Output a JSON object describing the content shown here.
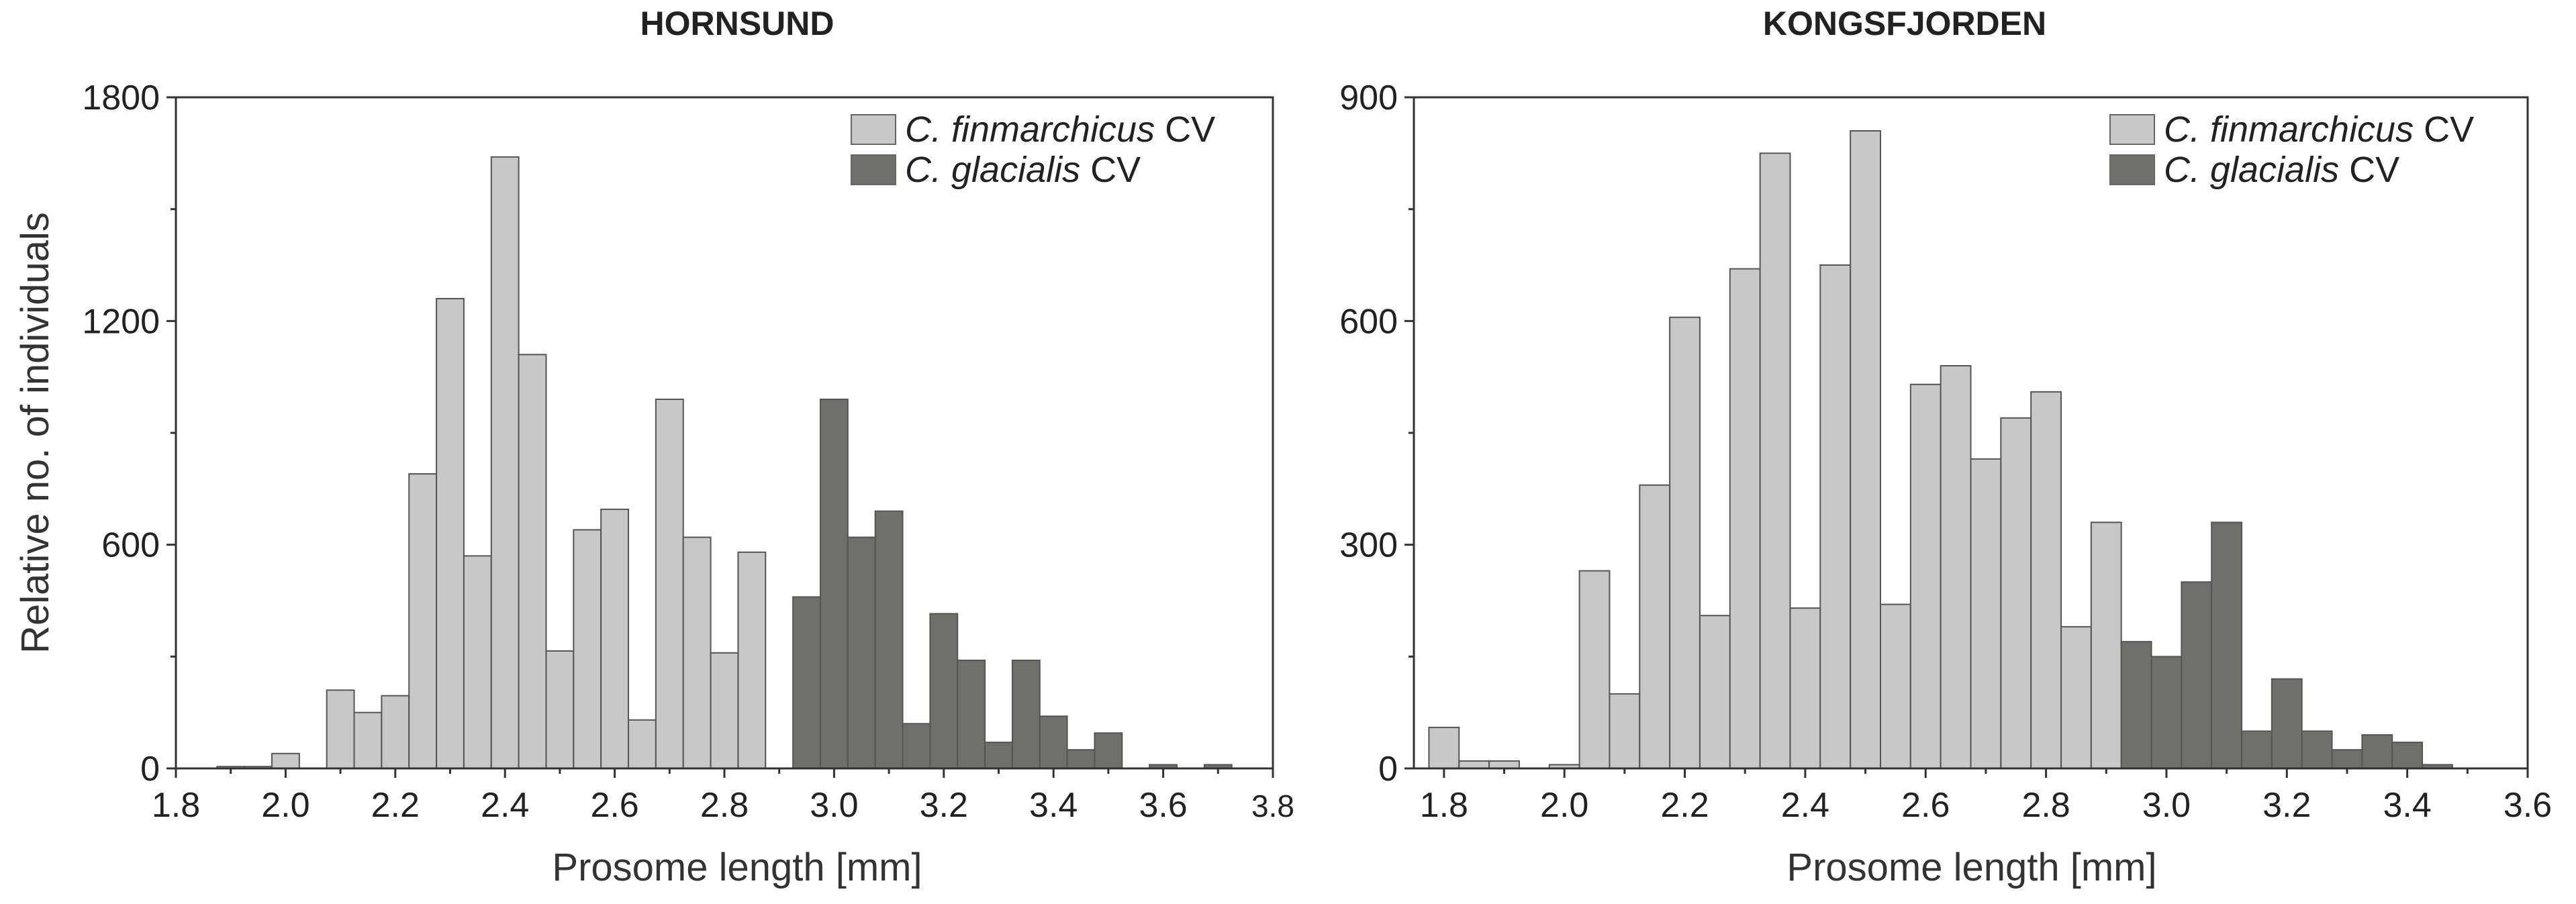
{
  "chart_data": [
    {
      "type": "bar",
      "title": "HORNSUND",
      "xlabel": "Prosome length [mm]",
      "ylabel": "Relative no. of individuals",
      "xlim": [
        1.8,
        3.8
      ],
      "ylim": [
        0,
        1800
      ],
      "xticks": [
        "1.8",
        "2.0",
        "2.2",
        "2.4",
        "2.6",
        "2.8",
        "3.0",
        "3.2",
        "3.4",
        "3.6",
        "3.8"
      ],
      "yticks": [
        "0",
        "600",
        "1200",
        "1800"
      ],
      "bin_width": 0.05,
      "legend": {
        "position": "top-right",
        "entries": [
          {
            "italic": "C. finmarchicus",
            "suffix": " CV",
            "color": "#c8c8c8"
          },
          {
            "italic": "C. glacialis",
            "suffix": " CV",
            "color": "#6f6f6b"
          }
        ]
      },
      "series": [
        {
          "name": "C. finmarchicus CV",
          "color": "#c8c8c8",
          "x": [
            1.9,
            1.95,
            2.0,
            2.05,
            2.1,
            2.15,
            2.2,
            2.25,
            2.3,
            2.35,
            2.4,
            2.45,
            2.5,
            2.55,
            2.6,
            2.65,
            2.7,
            2.75,
            2.8,
            2.85,
            2.9
          ],
          "values": [
            5,
            5,
            40,
            0,
            210,
            150,
            195,
            790,
            1260,
            570,
            1640,
            1110,
            315,
            640,
            695,
            130,
            990,
            620,
            310,
            580,
            0
          ]
        },
        {
          "name": "C. glacialis CV",
          "color": "#6f6f6b",
          "x": [
            2.95,
            3.0,
            3.05,
            3.1,
            3.15,
            3.2,
            3.25,
            3.3,
            3.35,
            3.4,
            3.45,
            3.5,
            3.55,
            3.6,
            3.65,
            3.7
          ],
          "values": [
            460,
            990,
            620,
            690,
            120,
            415,
            290,
            70,
            290,
            140,
            50,
            95,
            0,
            10,
            0,
            10
          ]
        }
      ]
    },
    {
      "type": "bar",
      "title": "KONGSFJORDEN",
      "xlabel": "Prosome length [mm]",
      "ylabel": "",
      "xlim": [
        1.75,
        3.6
      ],
      "ylim": [
        0,
        900
      ],
      "xticks": [
        "1.8",
        "2.0",
        "2.2",
        "2.4",
        "2.6",
        "2.8",
        "3.0",
        "3.2",
        "3.4",
        "3.6"
      ],
      "yticks": [
        "0",
        "300",
        "600",
        "900"
      ],
      "bin_width": 0.05,
      "legend": {
        "position": "top-right",
        "entries": [
          {
            "italic": "C. finmarchicus",
            "suffix": " CV",
            "color": "#c8c8c8"
          },
          {
            "italic": "C. glacialis",
            "suffix": " CV",
            "color": "#6f6f6b"
          }
        ]
      },
      "series": [
        {
          "name": "C. finmarchicus CV",
          "color": "#c8c8c8",
          "x": [
            1.8,
            1.85,
            1.9,
            1.95,
            2.0,
            2.05,
            2.1,
            2.15,
            2.2,
            2.25,
            2.3,
            2.35,
            2.4,
            2.45,
            2.5,
            2.55,
            2.6,
            2.65,
            2.7,
            2.75,
            2.8,
            2.85,
            2.9
          ],
          "values": [
            55,
            10,
            10,
            0,
            5,
            265,
            100,
            380,
            605,
            205,
            670,
            825,
            215,
            675,
            855,
            220,
            515,
            540,
            415,
            470,
            505,
            190,
            330
          ]
        },
        {
          "name": "C. glacialis CV",
          "color": "#6f6f6b",
          "x": [
            2.95,
            3.0,
            3.05,
            3.1,
            3.15,
            3.2,
            3.25,
            3.3,
            3.35,
            3.4,
            3.45
          ],
          "values": [
            170,
            150,
            250,
            330,
            50,
            120,
            50,
            25,
            45,
            35,
            5
          ]
        }
      ]
    }
  ]
}
